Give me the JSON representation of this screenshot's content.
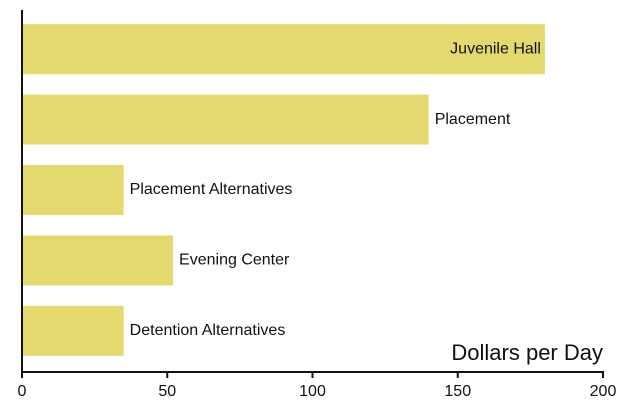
{
  "chart_data": {
    "type": "bar",
    "orientation": "horizontal",
    "x_label": "Dollars per Day",
    "categories": [
      "Juvenile Hall",
      "Placement",
      "Placement Alternatives",
      "Evening Center",
      "Detention Alternatives"
    ],
    "values": [
      180,
      140,
      35,
      52,
      35
    ],
    "color": "#e3d96f",
    "xlim": [
      0,
      200
    ],
    "xticks": [
      0,
      50,
      100,
      150,
      200
    ],
    "grid": false
  }
}
